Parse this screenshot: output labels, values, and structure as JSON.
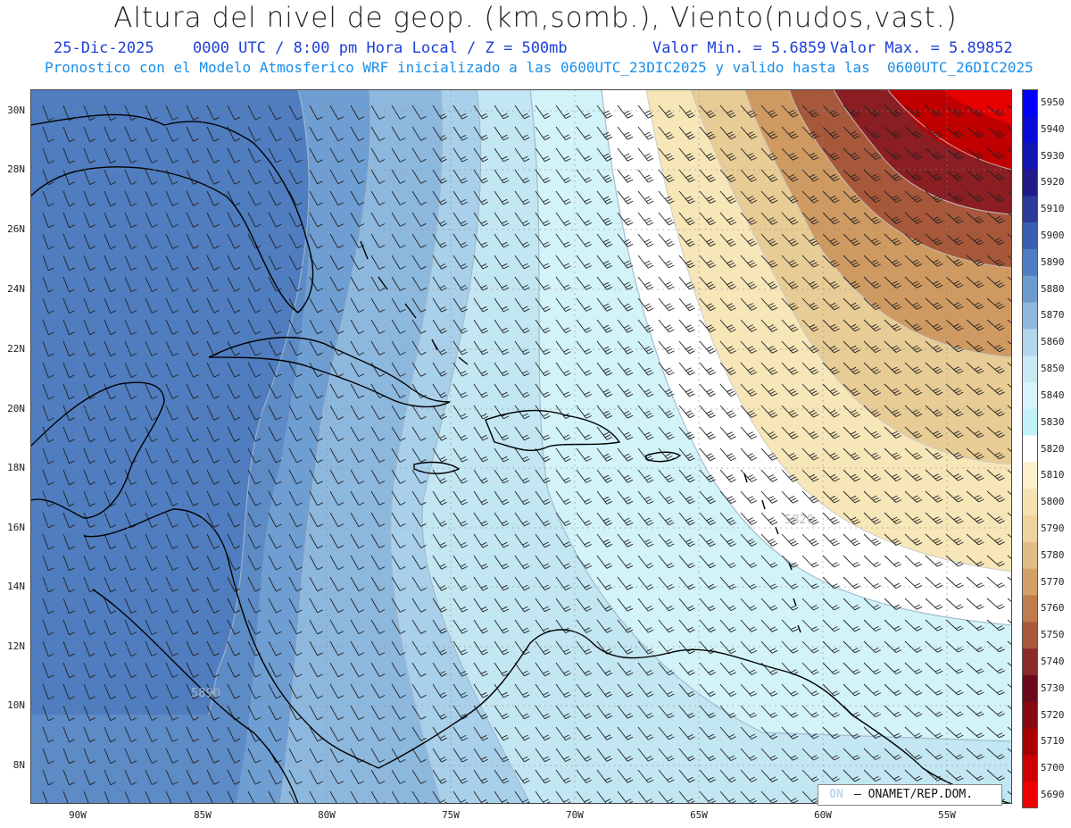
{
  "header": {
    "title": "Altura del nivel de geop. (km,somb.), Viento(nudos,vast.)",
    "date": "25-Dic-2025",
    "time": "0000 UTC / 8:00 pm Hora Local / Z = 500mb",
    "valor_min": "Valor Min. = 5.6859",
    "valor_max": "Valor Max. = 5.89852",
    "model_line": "Pronostico con el Modelo Atmosferico WRF inicializado a las 0600UTC_23DIC2025 y valido hasta las  0600UTC_26DIC2025"
  },
  "axes": {
    "lat_labels": [
      "30N",
      "28N",
      "26N",
      "24N",
      "22N",
      "20N",
      "18N",
      "16N",
      "14N",
      "12N",
      "10N",
      "8N"
    ],
    "lon_labels": [
      "90W",
      "85W",
      "80W",
      "75W",
      "70W",
      "65W",
      "60W",
      "55W"
    ]
  },
  "colorbar": {
    "labels": [
      "5950",
      "5940",
      "5930",
      "5920",
      "5910",
      "5900",
      "5890",
      "5880",
      "5870",
      "5860",
      "5850",
      "5840",
      "5830",
      "5820",
      "5810",
      "5800",
      "5790",
      "5780",
      "5770",
      "5760",
      "5750",
      "5740",
      "5730",
      "5720",
      "5710",
      "5700",
      "5690"
    ],
    "colors": [
      "#0000ff",
      "#0a0ad8",
      "#1414b0",
      "#201a8a",
      "#2c3a9a",
      "#3a5fb0",
      "#4f7dc0",
      "#6d9bd0",
      "#8fb8de",
      "#b2d6ea",
      "#c8e8f2",
      "#d6f4fa",
      "#c2f2f8",
      "#ffffff",
      "#fbf0cc",
      "#f5e2b2",
      "#eed49c",
      "#e2bc86",
      "#d4a06a",
      "#c07c4c",
      "#a85a3a",
      "#8a2a2a",
      "#6a0a1c",
      "#860a10",
      "#a80000",
      "#cc0000",
      "#ee0000"
    ]
  },
  "map_labels": {
    "contour_5890": "5890",
    "contour_5820": "5820"
  },
  "credit": {
    "logo": "ON",
    "text": "– ONAMET/REP.DOM."
  }
}
